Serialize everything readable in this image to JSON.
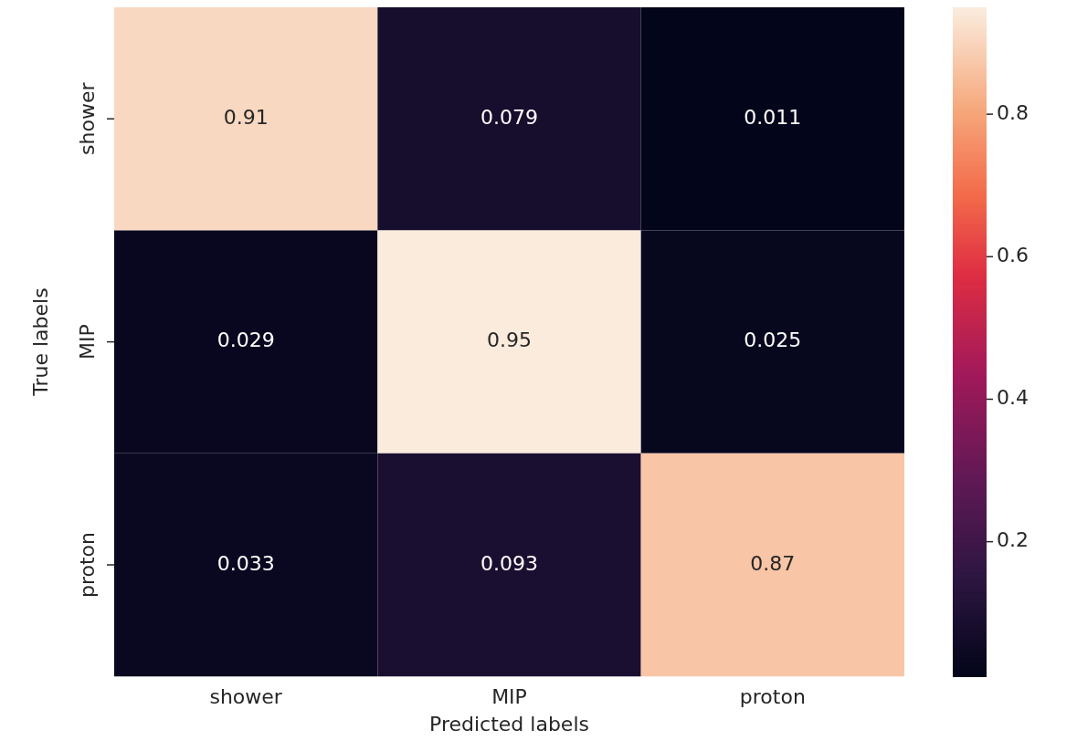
{
  "chart_data": {
    "type": "heatmap",
    "xlabel": "Predicted labels",
    "ylabel": "True labels",
    "categories": [
      "shower",
      "MIP",
      "proton"
    ],
    "y_categories": [
      "shower",
      "MIP",
      "proton"
    ],
    "cells": [
      [
        0.91,
        0.079,
        0.011
      ],
      [
        0.029,
        0.95,
        0.025
      ],
      [
        0.033,
        0.093,
        0.87
      ]
    ],
    "clim": [
      0.011,
      0.95
    ],
    "cticks": [
      0.2,
      0.4,
      0.6,
      0.8
    ],
    "data_labels": true
  }
}
